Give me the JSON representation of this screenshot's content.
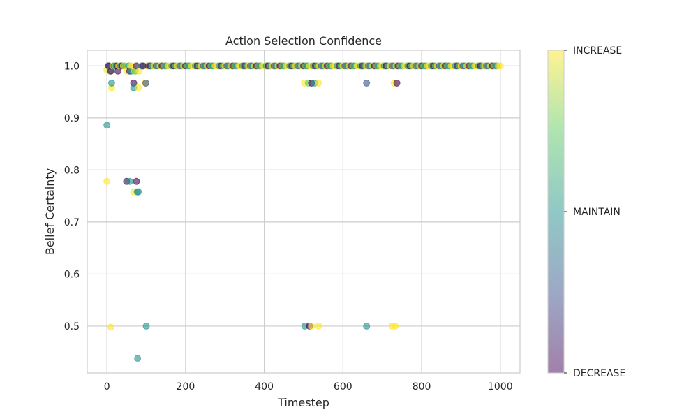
{
  "chart_data": {
    "type": "scatter",
    "title": "Action Selection Confidence",
    "xlabel": "Timestep",
    "ylabel": "Belief Certainty",
    "xlim": [
      -50,
      1050
    ],
    "ylim": [
      0.41,
      1.03
    ],
    "xticks": [
      "0",
      "200",
      "400",
      "600",
      "800",
      "1000"
    ],
    "yticks": [
      "0.5",
      "0.6",
      "0.7",
      "0.8",
      "0.9",
      "1.0"
    ],
    "grid": true,
    "colormap": "viridis",
    "colorbar": {
      "labels": [
        "DECREASE",
        "MAINTAIN",
        "INCREASE"
      ],
      "values": [
        -1,
        0,
        1
      ]
    },
    "point_alpha": 0.6,
    "points": [
      {
        "x": 0,
        "y": 0.992,
        "c": 1
      },
      {
        "x": 3,
        "y": 1.0,
        "c": 0
      },
      {
        "x": 5,
        "y": 1.0,
        "c": -1
      },
      {
        "x": 8,
        "y": 0.99,
        "c": 0.5
      },
      {
        "x": 10,
        "y": 0.99,
        "c": -1
      },
      {
        "x": 12,
        "y": 0.958,
        "c": 1
      },
      {
        "x": 12,
        "y": 0.967,
        "c": 0
      },
      {
        "x": 15,
        "y": 1.0,
        "c": 1
      },
      {
        "x": 18,
        "y": 1.0,
        "c": 0
      },
      {
        "x": 22,
        "y": 1.0,
        "c": 0.5
      },
      {
        "x": 25,
        "y": 1.0,
        "c": -1
      },
      {
        "x": 28,
        "y": 0.99,
        "c": -1
      },
      {
        "x": 30,
        "y": 1.0,
        "c": 1
      },
      {
        "x": 35,
        "y": 1.0,
        "c": 0
      },
      {
        "x": 38,
        "y": 1.0,
        "c": -1
      },
      {
        "x": 42,
        "y": 1.0,
        "c": 1
      },
      {
        "x": 45,
        "y": 1.0,
        "c": 0.5
      },
      {
        "x": 50,
        "y": 0.99,
        "c": 1
      },
      {
        "x": 55,
        "y": 1.0,
        "c": 0
      },
      {
        "x": 58,
        "y": 0.99,
        "c": -1
      },
      {
        "x": 60,
        "y": 1.0,
        "c": 1
      },
      {
        "x": 62,
        "y": 0.99,
        "c": 0
      },
      {
        "x": 65,
        "y": 1.0,
        "c": 1
      },
      {
        "x": 68,
        "y": 0.967,
        "c": -1
      },
      {
        "x": 68,
        "y": 0.958,
        "c": 0
      },
      {
        "x": 70,
        "y": 0.99,
        "c": 1
      },
      {
        "x": 72,
        "y": 0.99,
        "c": 0.5
      },
      {
        "x": 75,
        "y": 1.0,
        "c": -1
      },
      {
        "x": 80,
        "y": 0.958,
        "c": 1
      },
      {
        "x": 82,
        "y": 0.99,
        "c": 1
      },
      {
        "x": 88,
        "y": 1.0,
        "c": 0
      },
      {
        "x": 92,
        "y": 1.0,
        "c": -1
      },
      {
        "x": 97,
        "y": 0.967,
        "c": 1
      },
      {
        "x": 99,
        "y": 0.967,
        "c": -0.5
      },
      {
        "x": 0,
        "y": 0.886,
        "c": 0
      },
      {
        "x": 0,
        "y": 0.778,
        "c": 1
      },
      {
        "x": 50,
        "y": 0.778,
        "c": -1
      },
      {
        "x": 58,
        "y": 0.778,
        "c": 0
      },
      {
        "x": 68,
        "y": 0.758,
        "c": 1
      },
      {
        "x": 75,
        "y": 0.778,
        "c": -1
      },
      {
        "x": 77,
        "y": 0.758,
        "c": 0
      },
      {
        "x": 80,
        "y": 0.758,
        "c": 0
      },
      {
        "x": 10,
        "y": 0.498,
        "c": 1
      },
      {
        "x": 100,
        "y": 0.5,
        "c": 0
      },
      {
        "x": 78,
        "y": 0.438,
        "c": 0
      },
      {
        "x": 502,
        "y": 0.967,
        "c": 1
      },
      {
        "x": 512,
        "y": 0.967,
        "c": 0.5
      },
      {
        "x": 520,
        "y": 0.967,
        "c": -1
      },
      {
        "x": 528,
        "y": 0.967,
        "c": 0
      },
      {
        "x": 538,
        "y": 0.967,
        "c": 1
      },
      {
        "x": 660,
        "y": 0.967,
        "c": -0.5
      },
      {
        "x": 730,
        "y": 0.967,
        "c": 1
      },
      {
        "x": 737,
        "y": 0.967,
        "c": -1
      },
      {
        "x": 503,
        "y": 0.5,
        "c": 0
      },
      {
        "x": 515,
        "y": 0.5,
        "c": -1
      },
      {
        "x": 520,
        "y": 0.5,
        "c": 1
      },
      {
        "x": 538,
        "y": 0.5,
        "c": 1
      },
      {
        "x": 660,
        "y": 0.5,
        "c": 0
      },
      {
        "x": 725,
        "y": 0.5,
        "c": 1
      },
      {
        "x": 733,
        "y": 0.5,
        "c": 1
      }
    ],
    "dense_band": {
      "y": 1.0,
      "x_from": 100,
      "x_to": 1000,
      "step": 5
    }
  }
}
